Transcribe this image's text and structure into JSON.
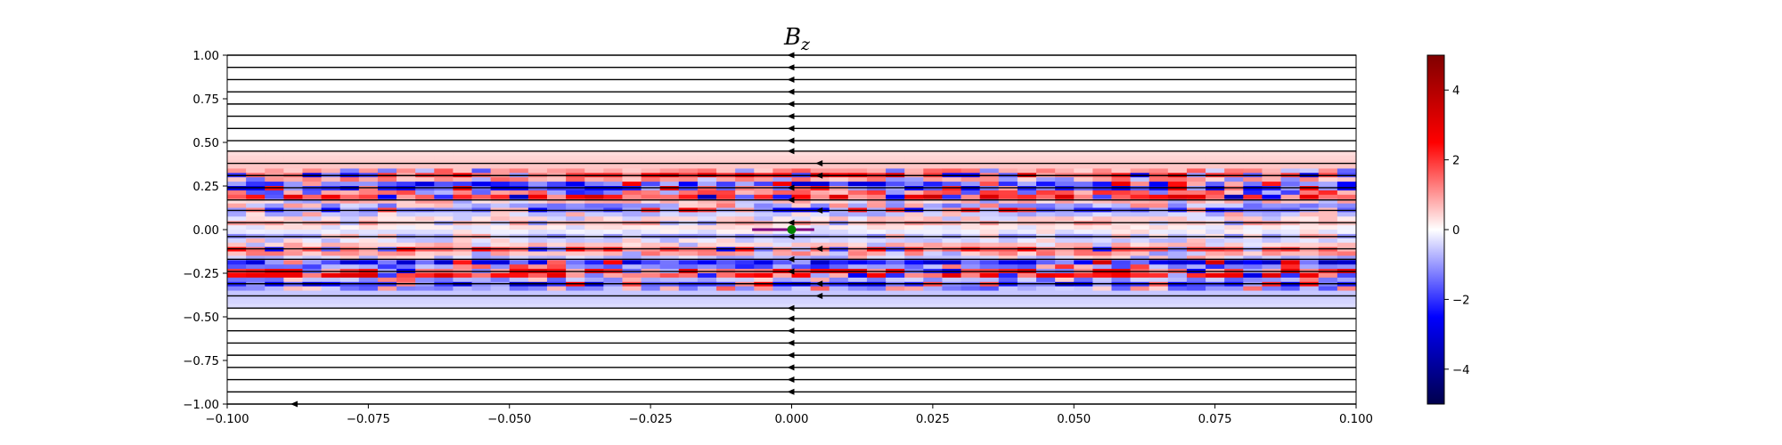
{
  "chart_data": {
    "type": "heatmap",
    "title": "B",
    "title_subscript": "z",
    "xlabel": "",
    "ylabel": "",
    "xlim": [
      -0.1,
      0.1
    ],
    "ylim": [
      -1.0,
      1.0
    ],
    "x_ticks": [
      -0.1,
      -0.075,
      -0.05,
      -0.025,
      0.0,
      0.025,
      0.05,
      0.075,
      0.1
    ],
    "x_tick_labels": [
      "−0.100",
      "−0.075",
      "−0.050",
      "−0.025",
      "0.000",
      "0.025",
      "0.050",
      "0.075",
      "0.100"
    ],
    "y_ticks": [
      1.0,
      0.75,
      0.5,
      0.25,
      0.0,
      -0.25,
      -0.5,
      -0.75,
      -1.0
    ],
    "y_tick_labels": [
      "1.00",
      "0.75",
      "0.50",
      "0.25",
      "0.00",
      "−0.25",
      "−0.50",
      "−0.75",
      "−1.00"
    ],
    "colorbar": {
      "cmap": "seismic",
      "vmin": -5.0,
      "vmax": 5.0,
      "ticks": [
        4,
        2,
        0,
        -2,
        -4
      ],
      "tick_labels": [
        "4",
        "2",
        "0",
        "−2",
        "−4"
      ]
    },
    "field_profile": [
      {
        "y": 0.45,
        "value": 0.3
      },
      {
        "y": 0.35,
        "value": 0.6
      },
      {
        "y": 0.3,
        "value": 2.5
      },
      {
        "y": 0.25,
        "value": -3.5
      },
      {
        "y": 0.2,
        "value": 3.0
      },
      {
        "y": 0.12,
        "value": -2.0
      },
      {
        "y": 0.05,
        "value": 1.0
      },
      {
        "y": 0.0,
        "value": 0.0
      },
      {
        "y": -0.05,
        "value": -1.0
      },
      {
        "y": -0.12,
        "value": 2.0
      },
      {
        "y": -0.2,
        "value": -3.0
      },
      {
        "y": -0.25,
        "value": 3.5
      },
      {
        "y": -0.3,
        "value": -2.5
      },
      {
        "y": -0.35,
        "value": -0.6
      },
      {
        "y": -0.45,
        "value": -0.3
      }
    ],
    "streamlines": {
      "y_values": [
        1.0,
        0.93,
        0.86,
        0.79,
        0.72,
        0.65,
        0.58,
        0.51,
        0.45,
        0.38,
        0.31,
        0.24,
        0.17,
        0.11,
        0.04,
        -0.04,
        -0.11,
        -0.17,
        -0.24,
        -0.31,
        -0.38,
        -0.45,
        -0.51,
        -0.58,
        -0.65,
        -0.72,
        -0.79,
        -0.86,
        -0.93,
        -1.0
      ],
      "direction": "negative-x",
      "arrow_x": [
        0.0,
        0.0,
        0.0,
        0.0,
        0.0,
        0.0,
        0.0,
        0.0,
        0.0,
        0.005,
        0.005,
        0.0,
        0.0,
        0.005,
        0.0,
        0.0,
        0.005,
        0.0,
        0.0,
        0.005,
        0.005,
        0.0,
        0.0,
        0.0,
        0.0,
        0.0,
        0.0,
        0.0,
        0.0,
        -0.088
      ]
    },
    "marker": {
      "x": 0.0,
      "y": 0.0,
      "color": "#008000"
    },
    "marker_bar": {
      "x_start": -0.007,
      "x_end": 0.004,
      "y": 0.0,
      "color": "#800080"
    }
  }
}
